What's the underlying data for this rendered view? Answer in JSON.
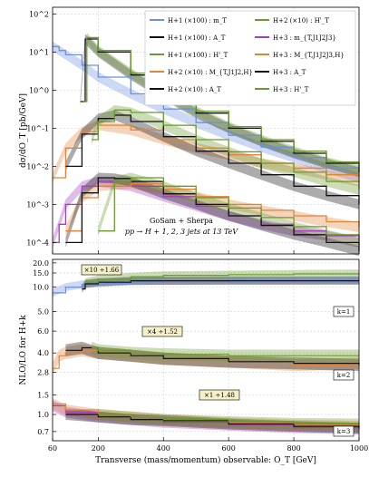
{
  "chart_data": [
    {
      "type": "line",
      "panel": "main",
      "ylabel": "dσ/dO_T [pb/GeV]",
      "yscale": "log",
      "xlim": [
        60,
        1000
      ],
      "ylim": [
        5e-05,
        150
      ],
      "y_tick_labels": [
        "10^2",
        "10^1",
        "10^0",
        "10^-1",
        "10^-2",
        "10^-3",
        "10^-4"
      ],
      "annotations": [
        "GoSam + Sherpa",
        "pp → H + 1, 2, 3 jets at 13 TeV"
      ],
      "legend_position": "top-right",
      "series": [
        {
          "name": "H+1 (×100) : m_T",
          "color": "#6d8fe0",
          "x": [
            60,
            80,
            100,
            150,
            200,
            300,
            400,
            500,
            600,
            700,
            800,
            900,
            1000
          ],
          "y": [
            14,
            11,
            8.5,
            4.5,
            2.2,
            0.8,
            0.32,
            0.14,
            0.065,
            0.032,
            0.017,
            0.009,
            0.005
          ]
        },
        {
          "name": "H+1 (×100) : A_T",
          "color": "#111111",
          "x": [
            145,
            160,
            200,
            300,
            400,
            500,
            600,
            700,
            800,
            900,
            1000
          ],
          "y": [
            0.5,
            22,
            10,
            2.5,
            0.75,
            0.25,
            0.1,
            0.045,
            0.022,
            0.012,
            0.007
          ]
        },
        {
          "name": "H+1 (×100) : H'_T",
          "color": "#6a9a2f",
          "x": [
            155,
            165,
            200,
            300,
            400,
            500,
            600,
            700,
            800,
            900,
            1000
          ],
          "y": [
            0.5,
            24,
            11,
            2.8,
            0.85,
            0.28,
            0.11,
            0.05,
            0.025,
            0.013,
            0.008
          ]
        },
        {
          "name": "H+2 (×10) : M_{T,J1J2,H}",
          "color": "#e0843a",
          "x": [
            60,
            100,
            150,
            200,
            300,
            400,
            500,
            600,
            700,
            800,
            900,
            1000
          ],
          "y": [
            0.005,
            0.03,
            0.08,
            0.12,
            0.09,
            0.05,
            0.03,
            0.02,
            0.012,
            0.009,
            0.006,
            0.004
          ]
        },
        {
          "name": "H+2 (×10) : A_T",
          "color": "#111111",
          "x": [
            100,
            150,
            200,
            250,
            300,
            400,
            500,
            600,
            700,
            800,
            900,
            1000
          ],
          "y": [
            0.01,
            0.07,
            0.18,
            0.22,
            0.15,
            0.06,
            0.025,
            0.012,
            0.006,
            0.003,
            0.0017,
            0.001
          ]
        },
        {
          "name": "H+2 (×10) : H'_T",
          "color": "#6a9a2f",
          "x": [
            180,
            200,
            250,
            300,
            400,
            500,
            600,
            700,
            800,
            900,
            1000
          ],
          "y": [
            0.05,
            0.15,
            0.3,
            0.26,
            0.12,
            0.05,
            0.024,
            0.012,
            0.007,
            0.004,
            0.0024
          ]
        },
        {
          "name": "H+3 : m_{T,J1J2J3}",
          "color": "#a43ec0",
          "x": [
            60,
            80,
            100,
            150,
            200,
            300,
            400,
            500,
            600,
            700,
            800,
            900,
            1000
          ],
          "y": [
            0.0001,
            0.0003,
            0.001,
            0.003,
            0.004,
            0.003,
            0.0016,
            0.0009,
            0.0005,
            0.0003,
            0.0002,
            0.00015,
            0.0001
          ]
        },
        {
          "name": "H+3 : M_{T,J1J2J3,H}",
          "color": "#e0843a",
          "x": [
            100,
            150,
            200,
            300,
            400,
            500,
            600,
            700,
            800,
            900,
            1000
          ],
          "y": [
            0.0002,
            0.0015,
            0.003,
            0.0035,
            0.0025,
            0.0016,
            0.001,
            0.0007,
            0.0005,
            0.00035,
            0.00025
          ]
        },
        {
          "name": "H+3 : A_T",
          "color": "#111111",
          "x": [
            100,
            150,
            200,
            250,
            300,
            400,
            500,
            600,
            700,
            800,
            900,
            1000
          ],
          "y": [
            0.0001,
            0.002,
            0.005,
            0.0048,
            0.004,
            0.0019,
            0.001,
            0.0005,
            0.00028,
            0.00016,
            0.0001,
            6e-05
          ]
        },
        {
          "name": "H+3 : H'_T",
          "color": "#6a9a2f",
          "x": [
            200,
            250,
            300,
            400,
            500,
            600,
            700,
            800,
            900,
            1000
          ],
          "y": [
            0.0002,
            0.004,
            0.005,
            0.003,
            0.0015,
            0.0008,
            0.00045,
            0.00026,
            0.00016,
            0.0001
          ]
        }
      ]
    },
    {
      "type": "line",
      "panel": "ratio",
      "ylabel": "NLO/LO for H+k",
      "xlabel": "Transverse (mass/momentum) observable: O_T [GeV]",
      "xlim": [
        60,
        1000
      ],
      "x_tick_labels": [
        "60",
        "200",
        "400",
        "600",
        "800",
        "1000"
      ],
      "groups": [
        {
          "k_label": "k=1",
          "scale_label": "×10 ÷1.66",
          "y_tick_labels": [
            "20.0",
            "15.0",
            "10.0",
            "5.0"
          ],
          "y_ticks": [
            20,
            15,
            10,
            5
          ],
          "ylim": [
            4,
            21
          ],
          "series": [
            {
              "name": "H+1 (×100) : m_T",
              "color": "#6d8fe0",
              "x": [
                60,
                100,
                150,
                200,
                300,
                400,
                600,
                800,
                1000
              ],
              "y": [
                8.5,
                10,
                10.8,
                11.2,
                11.8,
                12.0,
                12.2,
                12.2,
                12.3
              ]
            },
            {
              "name": "H+1 (×100) : A_T",
              "color": "#111111",
              "x": [
                150,
                160,
                200,
                300,
                400,
                600,
                800,
                1000
              ],
              "y": [
                9.5,
                11,
                11.5,
                12,
                12,
                12,
                12,
                12
              ]
            },
            {
              "name": "H+1 (×100) : H'_T",
              "color": "#6a9a2f",
              "x": [
                160,
                200,
                300,
                400,
                600,
                800,
                1000
              ],
              "y": [
                11.5,
                12.5,
                13.5,
                14,
                14.3,
                14.6,
                14.8
              ]
            }
          ]
        },
        {
          "k_label": "k=2",
          "scale_label": "×4 ÷1.52",
          "y_tick_labels": [
            "6.0",
            "4.0",
            "2.8"
          ],
          "y_ticks": [
            6,
            4,
            2.8
          ],
          "ylim": [
            2.3,
            7
          ],
          "series": [
            {
              "name": "H+2 (×10) : M_{T,J1J2,H}",
              "color": "#e0843a",
              "x": [
                60,
                80,
                100,
                150,
                200,
                300,
                400,
                600,
                800,
                1000
              ],
              "y": [
                3.0,
                3.8,
                4.0,
                4.2,
                4.0,
                3.8,
                3.6,
                3.4,
                3.2,
                3.3
              ]
            },
            {
              "name": "H+2 (×10) : A_T",
              "color": "#111111",
              "x": [
                100,
                150,
                200,
                300,
                400,
                600,
                800,
                1000
              ],
              "y": [
                4.2,
                4.4,
                4.0,
                3.8,
                3.6,
                3.4,
                3.3,
                3.2
              ]
            },
            {
              "name": "H+2 (×10) : H'_T",
              "color": "#6a9a2f",
              "x": [
                180,
                200,
                300,
                400,
                600,
                800,
                1000
              ],
              "y": [
                4.4,
                4.2,
                4.0,
                3.9,
                3.8,
                3.8,
                3.8
              ]
            }
          ]
        },
        {
          "k_label": "k=3",
          "scale_label": "×1 ÷1.48",
          "y_tick_labels": [
            "1.5",
            "1.0",
            "0.7"
          ],
          "y_ticks": [
            1.5,
            1.0,
            0.7
          ],
          "ylim": [
            0.6,
            1.8
          ],
          "series": [
            {
              "name": "H+3 : m_{T,J1J2J3}",
              "color": "#a43ec0",
              "x": [
                60,
                100,
                200,
                300,
                400,
                600,
                800,
                1000
              ],
              "y": [
                1.2,
                1.05,
                0.95,
                0.9,
                0.85,
                0.8,
                0.76,
                0.74
              ]
            },
            {
              "name": "H+3 : M_{T,J1J2J3,H}",
              "color": "#e0843a",
              "x": [
                60,
                100,
                200,
                300,
                400,
                600,
                800,
                1000
              ],
              "y": [
                1.25,
                1.1,
                1.0,
                0.95,
                0.9,
                0.84,
                0.8,
                0.78
              ]
            },
            {
              "name": "H+3 : A_T",
              "color": "#111111",
              "x": [
                100,
                200,
                300,
                400,
                600,
                800,
                1000
              ],
              "y": [
                1.0,
                0.95,
                0.9,
                0.88,
                0.82,
                0.78,
                0.75
              ]
            },
            {
              "name": "H+3 : H'_T",
              "color": "#6a9a2f",
              "x": [
                200,
                300,
                400,
                600,
                800,
                1000
              ],
              "y": [
                1.0,
                0.95,
                0.9,
                0.86,
                0.83,
                0.82
              ]
            }
          ]
        }
      ]
    }
  ]
}
